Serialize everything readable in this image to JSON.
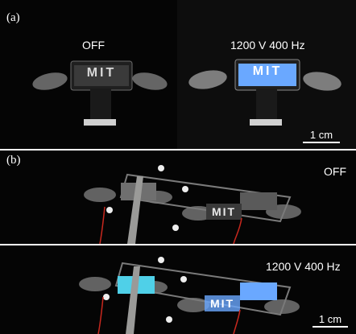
{
  "panel_a": {
    "label": "(a)",
    "left_caption": "OFF",
    "right_caption": "1200 V 400 Hz",
    "device_text_left": "MIT",
    "device_text_right": "MIT",
    "scale_label": "1 cm"
  },
  "panel_b": {
    "label": "(b)",
    "top_caption": "OFF",
    "device_text_top": "MIT",
    "bottom_caption": "1200 V 400 Hz",
    "device_text_bottom": "MIT",
    "scale_label": "1 cm"
  },
  "colors": {
    "background": "#050505",
    "glow_blue": "#6aa8ff",
    "glow_cyan": "#4fd0e8",
    "wire_red": "#c8281e",
    "metal": "#9a9a98"
  }
}
